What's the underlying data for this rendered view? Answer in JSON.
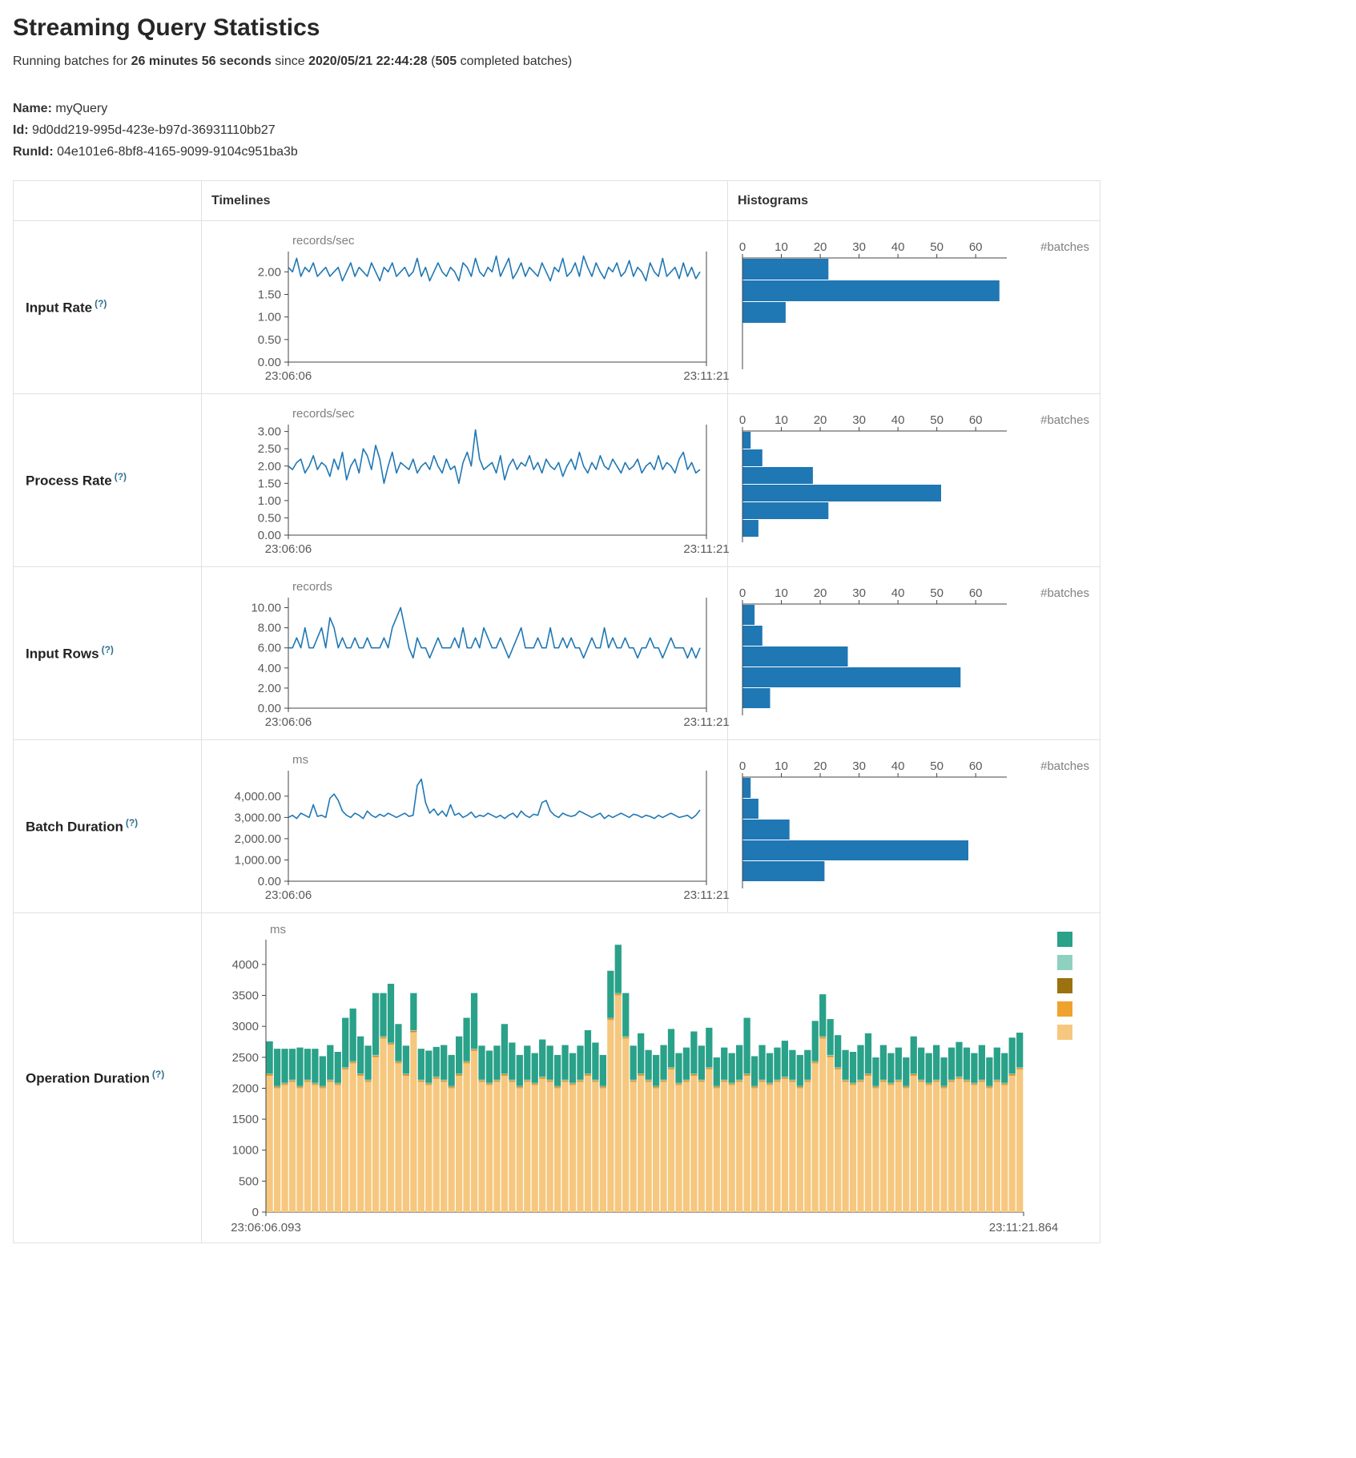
{
  "page": {
    "title": "Streaming Query Statistics",
    "status": {
      "prefix": "Running batches for ",
      "duration": "26 minutes 56 seconds",
      "mid": " since ",
      "since": "2020/05/21 22:44:28",
      "open": " (",
      "count": "505",
      "close": " completed batches)"
    },
    "meta": {
      "name_label": "Name:",
      "name": "myQuery",
      "id_label": "Id:",
      "id": "9d0dd219-995d-423e-b97d-36931110bb27",
      "runid_label": "RunId:",
      "runid": "04e101e6-8bf8-4165-9099-9104c951ba3b"
    }
  },
  "table": {
    "headers": {
      "timelines": "Timelines",
      "histograms": "Histograms"
    },
    "rows": [
      {
        "label": "Input Rate",
        "help": "(?)"
      },
      {
        "label": "Process Rate",
        "help": "(?)"
      },
      {
        "label": "Input Rows",
        "help": "(?)"
      },
      {
        "label": "Batch Duration",
        "help": "(?)"
      },
      {
        "label": "Operation Duration",
        "help": "(?)"
      }
    ]
  },
  "chart_data": [
    {
      "id": "input-rate-timeline",
      "type": "line",
      "title": "Input Rate timeline",
      "ylabel": "records/sec",
      "color": "#1f77b4",
      "ylim": [
        0,
        2.45
      ],
      "yticks": [
        0,
        0.5,
        1,
        1.5,
        2
      ],
      "ytick_labels": [
        "0.00",
        "0.50",
        "1.00",
        "1.50",
        "2.00"
      ],
      "x_start": "23:06:06",
      "x_end": "23:11:21",
      "values": [
        2.1,
        2.0,
        2.3,
        1.9,
        2.1,
        2.0,
        2.2,
        1.9,
        2.0,
        2.1,
        1.9,
        2.0,
        2.1,
        1.8,
        2.0,
        2.2,
        1.9,
        2.1,
        2.0,
        1.9,
        2.2,
        2.0,
        1.8,
        2.1,
        2.0,
        2.2,
        1.9,
        2.0,
        2.1,
        1.9,
        2.0,
        2.3,
        1.9,
        2.1,
        1.8,
        2.0,
        2.2,
        2.0,
        1.9,
        2.1,
        2.0,
        1.8,
        2.2,
        2.1,
        1.9,
        2.3,
        2.0,
        1.9,
        2.1,
        2.0,
        2.35,
        1.9,
        2.1,
        2.3,
        1.85,
        2.0,
        2.2,
        1.9,
        2.1,
        2.0,
        1.9,
        2.2,
        2.0,
        1.8,
        2.1,
        2.0,
        2.3,
        1.9,
        2.0,
        2.2,
        1.9,
        2.35,
        2.1,
        1.9,
        2.2,
        2.0,
        1.85,
        2.1,
        2.0,
        2.2,
        1.9,
        2.0,
        2.25,
        1.9,
        2.1,
        2.0,
        1.8,
        2.2,
        2.0,
        1.9,
        2.3,
        1.9,
        2.0,
        2.1,
        1.85,
        2.2,
        1.9,
        2.1,
        1.85,
        2.0
      ]
    },
    {
      "id": "input-rate-histogram",
      "type": "bar",
      "title": "Input Rate histogram",
      "xlabel": "#batches",
      "color": "#1f77b4",
      "xticks": [
        0,
        10,
        20,
        30,
        40,
        50,
        60
      ],
      "xlim": [
        0,
        68
      ],
      "values": [
        22,
        66,
        11
      ]
    },
    {
      "id": "process-rate-timeline",
      "type": "line",
      "title": "Process Rate timeline",
      "ylabel": "records/sec",
      "color": "#1f77b4",
      "ylim": [
        0,
        3.2
      ],
      "yticks": [
        0,
        0.5,
        1,
        1.5,
        2,
        2.5,
        3
      ],
      "ytick_labels": [
        "0.00",
        "0.50",
        "1.00",
        "1.50",
        "2.00",
        "2.50",
        "3.00"
      ],
      "x_start": "23:06:06",
      "x_end": "23:11:21",
      "values": [
        2.0,
        1.9,
        2.1,
        2.2,
        1.8,
        2.0,
        2.3,
        1.9,
        2.1,
        2.0,
        1.7,
        2.2,
        1.9,
        2.4,
        1.6,
        2.0,
        2.2,
        1.8,
        2.5,
        2.3,
        1.9,
        2.6,
        2.2,
        1.5,
        2.0,
        2.4,
        1.8,
        2.1,
        2.0,
        1.9,
        2.2,
        1.8,
        2.0,
        2.1,
        1.9,
        2.3,
        2.0,
        1.8,
        2.2,
        1.9,
        2.0,
        1.5,
        2.1,
        2.4,
        2.0,
        3.05,
        2.2,
        1.9,
        2.0,
        2.1,
        1.8,
        2.3,
        1.6,
        2.0,
        2.2,
        1.9,
        2.1,
        2.0,
        2.3,
        1.9,
        2.1,
        1.8,
        2.2,
        2.0,
        1.9,
        2.1,
        1.7,
        2.0,
        2.2,
        1.9,
        2.4,
        2.0,
        1.8,
        2.1,
        1.9,
        2.3,
        2.0,
        1.9,
        2.2,
        2.0,
        1.8,
        2.1,
        1.9,
        2.0,
        2.2,
        1.8,
        2.0,
        2.1,
        1.9,
        2.3,
        1.9,
        2.1,
        2.0,
        1.8,
        2.2,
        2.4,
        1.9,
        2.1,
        1.8,
        1.9
      ]
    },
    {
      "id": "process-rate-histogram",
      "type": "bar",
      "title": "Process Rate histogram",
      "xlabel": "#batches",
      "color": "#1f77b4",
      "xticks": [
        0,
        10,
        20,
        30,
        40,
        50,
        60
      ],
      "xlim": [
        0,
        68
      ],
      "values": [
        2,
        5,
        18,
        51,
        22,
        4
      ]
    },
    {
      "id": "input-rows-timeline",
      "type": "line",
      "title": "Input Rows timeline",
      "ylabel": "records",
      "color": "#1f77b4",
      "ylim": [
        0,
        11
      ],
      "yticks": [
        0,
        2,
        4,
        6,
        8,
        10
      ],
      "ytick_labels": [
        "0.00",
        "2.00",
        "4.00",
        "6.00",
        "8.00",
        "10.00"
      ],
      "x_start": "23:06:06",
      "x_end": "23:11:21",
      "values": [
        6,
        6,
        7,
        6,
        8,
        6,
        6,
        7,
        8,
        6,
        9,
        8,
        6,
        7,
        6,
        6,
        7,
        6,
        6,
        7,
        6,
        6,
        6,
        7,
        6,
        8,
        9,
        10,
        8,
        6,
        5,
        7,
        6,
        6,
        5,
        6,
        7,
        6,
        6,
        6,
        7,
        6,
        8,
        6,
        6,
        7,
        6,
        8,
        7,
        6,
        6,
        7,
        6,
        5,
        6,
        7,
        8,
        6,
        6,
        6,
        7,
        6,
        6,
        8,
        6,
        6,
        7,
        6,
        7,
        6,
        6,
        5,
        6,
        7,
        6,
        6,
        8,
        6,
        7,
        6,
        6,
        7,
        6,
        6,
        5,
        6,
        6,
        7,
        6,
        6,
        5,
        6,
        7,
        6,
        6,
        6,
        5,
        6,
        5,
        6
      ]
    },
    {
      "id": "input-rows-histogram",
      "type": "bar",
      "title": "Input Rows histogram",
      "xlabel": "#batches",
      "color": "#1f77b4",
      "xticks": [
        0,
        10,
        20,
        30,
        40,
        50,
        60
      ],
      "xlim": [
        0,
        68
      ],
      "values": [
        3,
        5,
        27,
        56,
        7
      ]
    },
    {
      "id": "batch-duration-timeline",
      "type": "line",
      "title": "Batch Duration timeline",
      "ylabel": "ms",
      "color": "#1f77b4",
      "ylim": [
        0,
        5200
      ],
      "yticks": [
        0,
        1000,
        2000,
        3000,
        4000
      ],
      "ytick_labels": [
        "0.00",
        "1,000.00",
        "2,000.00",
        "3,000.00",
        "4,000.00"
      ],
      "x_start": "23:06:06",
      "x_end": "23:11:21",
      "values": [
        3000,
        3100,
        2950,
        3200,
        3100,
        3000,
        3600,
        3050,
        3100,
        3000,
        3900,
        4100,
        3800,
        3300,
        3100,
        3000,
        3200,
        3100,
        2950,
        3300,
        3100,
        3000,
        3150,
        3050,
        3200,
        3100,
        3000,
        3100,
        3200,
        3050,
        3100,
        4500,
        4800,
        3700,
        3200,
        3400,
        3100,
        3300,
        3050,
        3600,
        3100,
        3200,
        3000,
        3100,
        3250,
        3000,
        3100,
        3050,
        3200,
        3100,
        3000,
        3100,
        2950,
        3100,
        3200,
        3000,
        3300,
        3100,
        3000,
        3150,
        3100,
        3700,
        3800,
        3300,
        3100,
        3000,
        3200,
        3100,
        3050,
        3100,
        3300,
        3200,
        3100,
        3000,
        3100,
        3200,
        2950,
        3100,
        3000,
        3100,
        3200,
        3100,
        3000,
        3150,
        3100,
        3000,
        3100,
        3050,
        2950,
        3100,
        3000,
        3100,
        3200,
        3100,
        3000,
        3050,
        3100,
        2950,
        3100,
        3350
      ]
    },
    {
      "id": "batch-duration-histogram",
      "type": "bar",
      "title": "Batch Duration histogram",
      "xlabel": "#batches",
      "color": "#1f77b4",
      "xticks": [
        0,
        10,
        20,
        30,
        40,
        50,
        60
      ],
      "xlim": [
        0,
        68
      ],
      "values": [
        2,
        4,
        12,
        58,
        21
      ]
    },
    {
      "id": "operation-duration-timeline",
      "type": "stacked-bar",
      "title": "Operation Duration timeline",
      "ylabel": "ms",
      "ylim": [
        0,
        4400
      ],
      "yticks": [
        0,
        500,
        1000,
        1500,
        2000,
        2500,
        3000,
        3500,
        4000
      ],
      "ytick_labels": [
        "0",
        "500",
        "1000",
        "1500",
        "2000",
        "2500",
        "3000",
        "3500",
        "4000"
      ],
      "x_start": "23:06:06.093",
      "x_end": "23:11:21.864",
      "legend_colors": [
        "#2aa189",
        "#8ed1c0",
        "#9b720f",
        "#f0a22e",
        "#f6c77e"
      ],
      "series": [
        {
          "name": "tan",
          "color": "#f6c77e",
          "values": [
            2200,
            2000,
            2050,
            2100,
            2000,
            2100,
            2050,
            2000,
            2100,
            2050,
            2300,
            2400,
            2200,
            2100,
            2500,
            2800,
            2700,
            2400,
            2200,
            2900,
            2100,
            2050,
            2150,
            2100,
            2000,
            2200,
            2400,
            2600,
            2100,
            2050,
            2100,
            2200,
            2100,
            2000,
            2100,
            2050,
            2150,
            2100,
            2000,
            2100,
            2050,
            2100,
            2200,
            2100,
            2000,
            3100,
            3500,
            2800,
            2100,
            2200,
            2100,
            2000,
            2100,
            2300,
            2050,
            2100,
            2200,
            2100,
            2300,
            2000,
            2100,
            2050,
            2100,
            2200,
            2000,
            2100,
            2050,
            2100,
            2150,
            2100,
            2000,
            2100,
            2400,
            2800,
            2500,
            2300,
            2100,
            2050,
            2100,
            2200,
            2000,
            2100,
            2050,
            2100,
            2000,
            2200,
            2100,
            2050,
            2100,
            2000,
            2100,
            2150,
            2100,
            2050,
            2100,
            2000,
            2100,
            2050,
            2200,
            2300
          ]
        },
        {
          "name": "orange",
          "color": "#f0a22e",
          "const": 18
        },
        {
          "name": "dark-gold",
          "color": "#9b720f",
          "const": 8
        },
        {
          "name": "light-teal",
          "color": "#8ed1c0",
          "const": 12
        },
        {
          "name": "teal",
          "color": "#2aa189",
          "values": [
            520,
            600,
            550,
            500,
            620,
            500,
            550,
            480,
            560,
            500,
            800,
            850,
            600,
            550,
            1000,
            700,
            950,
            600,
            450,
            600,
            500,
            520,
            480,
            560,
            500,
            600,
            700,
            900,
            550,
            520,
            550,
            800,
            600,
            500,
            550,
            480,
            600,
            550,
            500,
            560,
            480,
            550,
            700,
            600,
            500,
            760,
            780,
            700,
            550,
            650,
            480,
            500,
            560,
            620,
            480,
            520,
            680,
            550,
            640,
            460,
            520,
            480,
            560,
            900,
            480,
            560,
            480,
            520,
            580,
            480,
            500,
            480,
            650,
            680,
            580,
            520,
            480,
            500,
            560,
            650,
            460,
            560,
            480,
            520,
            460,
            600,
            520,
            480,
            560,
            460,
            520,
            560,
            520,
            480,
            560,
            460,
            520,
            480,
            580,
            560
          ]
        }
      ]
    }
  ]
}
